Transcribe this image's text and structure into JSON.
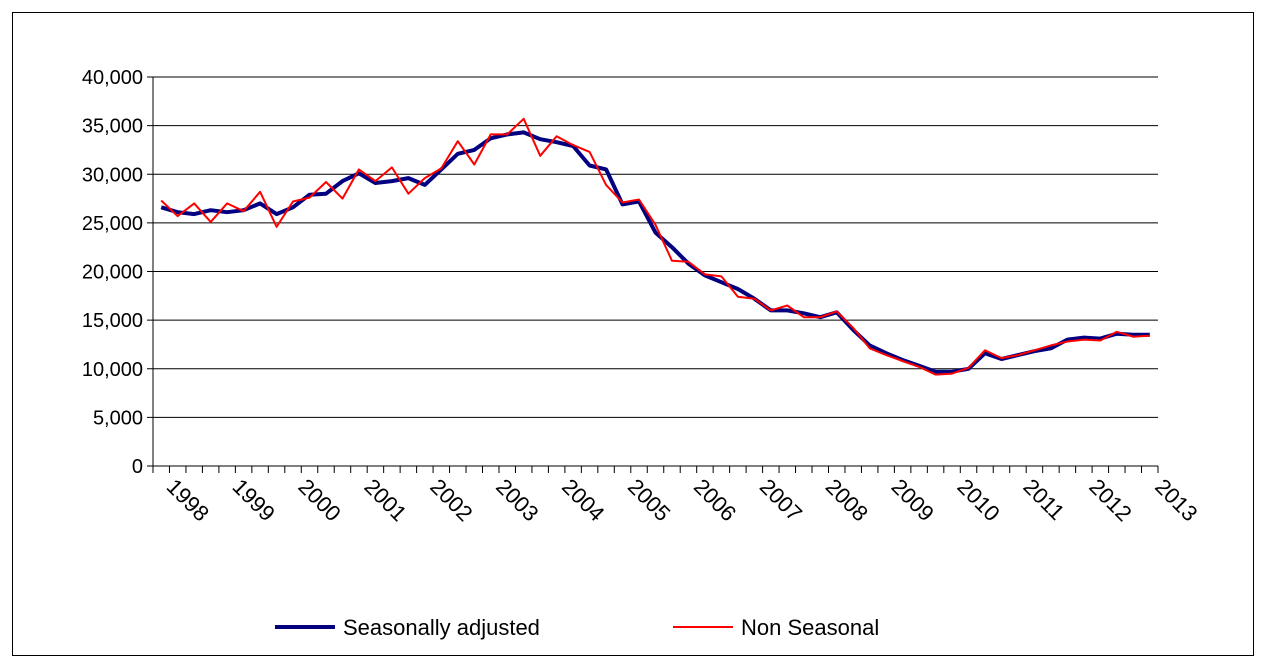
{
  "chart_data": {
    "type": "line",
    "categories": [
      "1998",
      null,
      null,
      null,
      "1999",
      null,
      null,
      null,
      "2000",
      null,
      null,
      null,
      "2001",
      null,
      null,
      null,
      "2002",
      null,
      null,
      null,
      "2003",
      null,
      null,
      null,
      "2004",
      null,
      null,
      null,
      "2005",
      null,
      null,
      null,
      "2006",
      null,
      null,
      null,
      "2007",
      null,
      null,
      null,
      "2008",
      null,
      null,
      null,
      "2009",
      null,
      null,
      null,
      "2010",
      null,
      null,
      null,
      "2011",
      null,
      null,
      null,
      "2012",
      null,
      null,
      null,
      "2013"
    ],
    "series": [
      {
        "name": "Seasonally adjusted",
        "color": "#000080",
        "width": 4,
        "values": [
          26600,
          26100,
          25900,
          26300,
          26100,
          26300,
          27000,
          25900,
          26600,
          27900,
          28000,
          29300,
          30100,
          29100,
          29300,
          29600,
          28900,
          30500,
          32100,
          32500,
          33700,
          34100,
          34300,
          33600,
          33300,
          32900,
          30900,
          30500,
          26900,
          27200,
          24000,
          22500,
          20800,
          19600,
          18900,
          18200,
          17200,
          16000,
          16000,
          15700,
          15300,
          15800,
          14000,
          12400,
          11600,
          10900,
          10300,
          9700,
          9700,
          10000,
          11600,
          11000,
          11400,
          11800,
          12100,
          13000,
          13200,
          13100,
          13600,
          13500,
          13500
        ]
      },
      {
        "name": "Non Seasonal",
        "color": "#ff0000",
        "width": 2,
        "values": [
          27300,
          25700,
          27000,
          25100,
          27000,
          26200,
          28200,
          24600,
          27200,
          27600,
          29200,
          27500,
          30500,
          29300,
          30700,
          28000,
          29600,
          30600,
          33400,
          31000,
          34100,
          34100,
          35700,
          31900,
          33900,
          33000,
          32300,
          28900,
          27100,
          27400,
          24800,
          21100,
          21000,
          19700,
          19500,
          17400,
          17200,
          16000,
          16500,
          15300,
          15300,
          15900,
          14200,
          12100,
          11400,
          10800,
          10200,
          9400,
          9500,
          10100,
          11900,
          11100,
          11400,
          11900,
          12400,
          12800,
          13000,
          12900,
          13800,
          13300,
          13400
        ]
      }
    ],
    "ylim": [
      0,
      40000
    ],
    "yticks": [
      0,
      {
        "value": 5000,
        "label": "5,000"
      },
      {
        "value": 10000,
        "label": "10,000"
      },
      {
        "value": 15000,
        "label": "15,000"
      },
      {
        "value": 20000,
        "label": "20,000"
      },
      {
        "value": 25000,
        "label": "25,000"
      },
      {
        "value": 30000,
        "label": "30,000"
      },
      {
        "value": 35000,
        "label": "35,000"
      },
      {
        "value": 40000,
        "label": "40,000"
      }
    ],
    "grid": true
  }
}
